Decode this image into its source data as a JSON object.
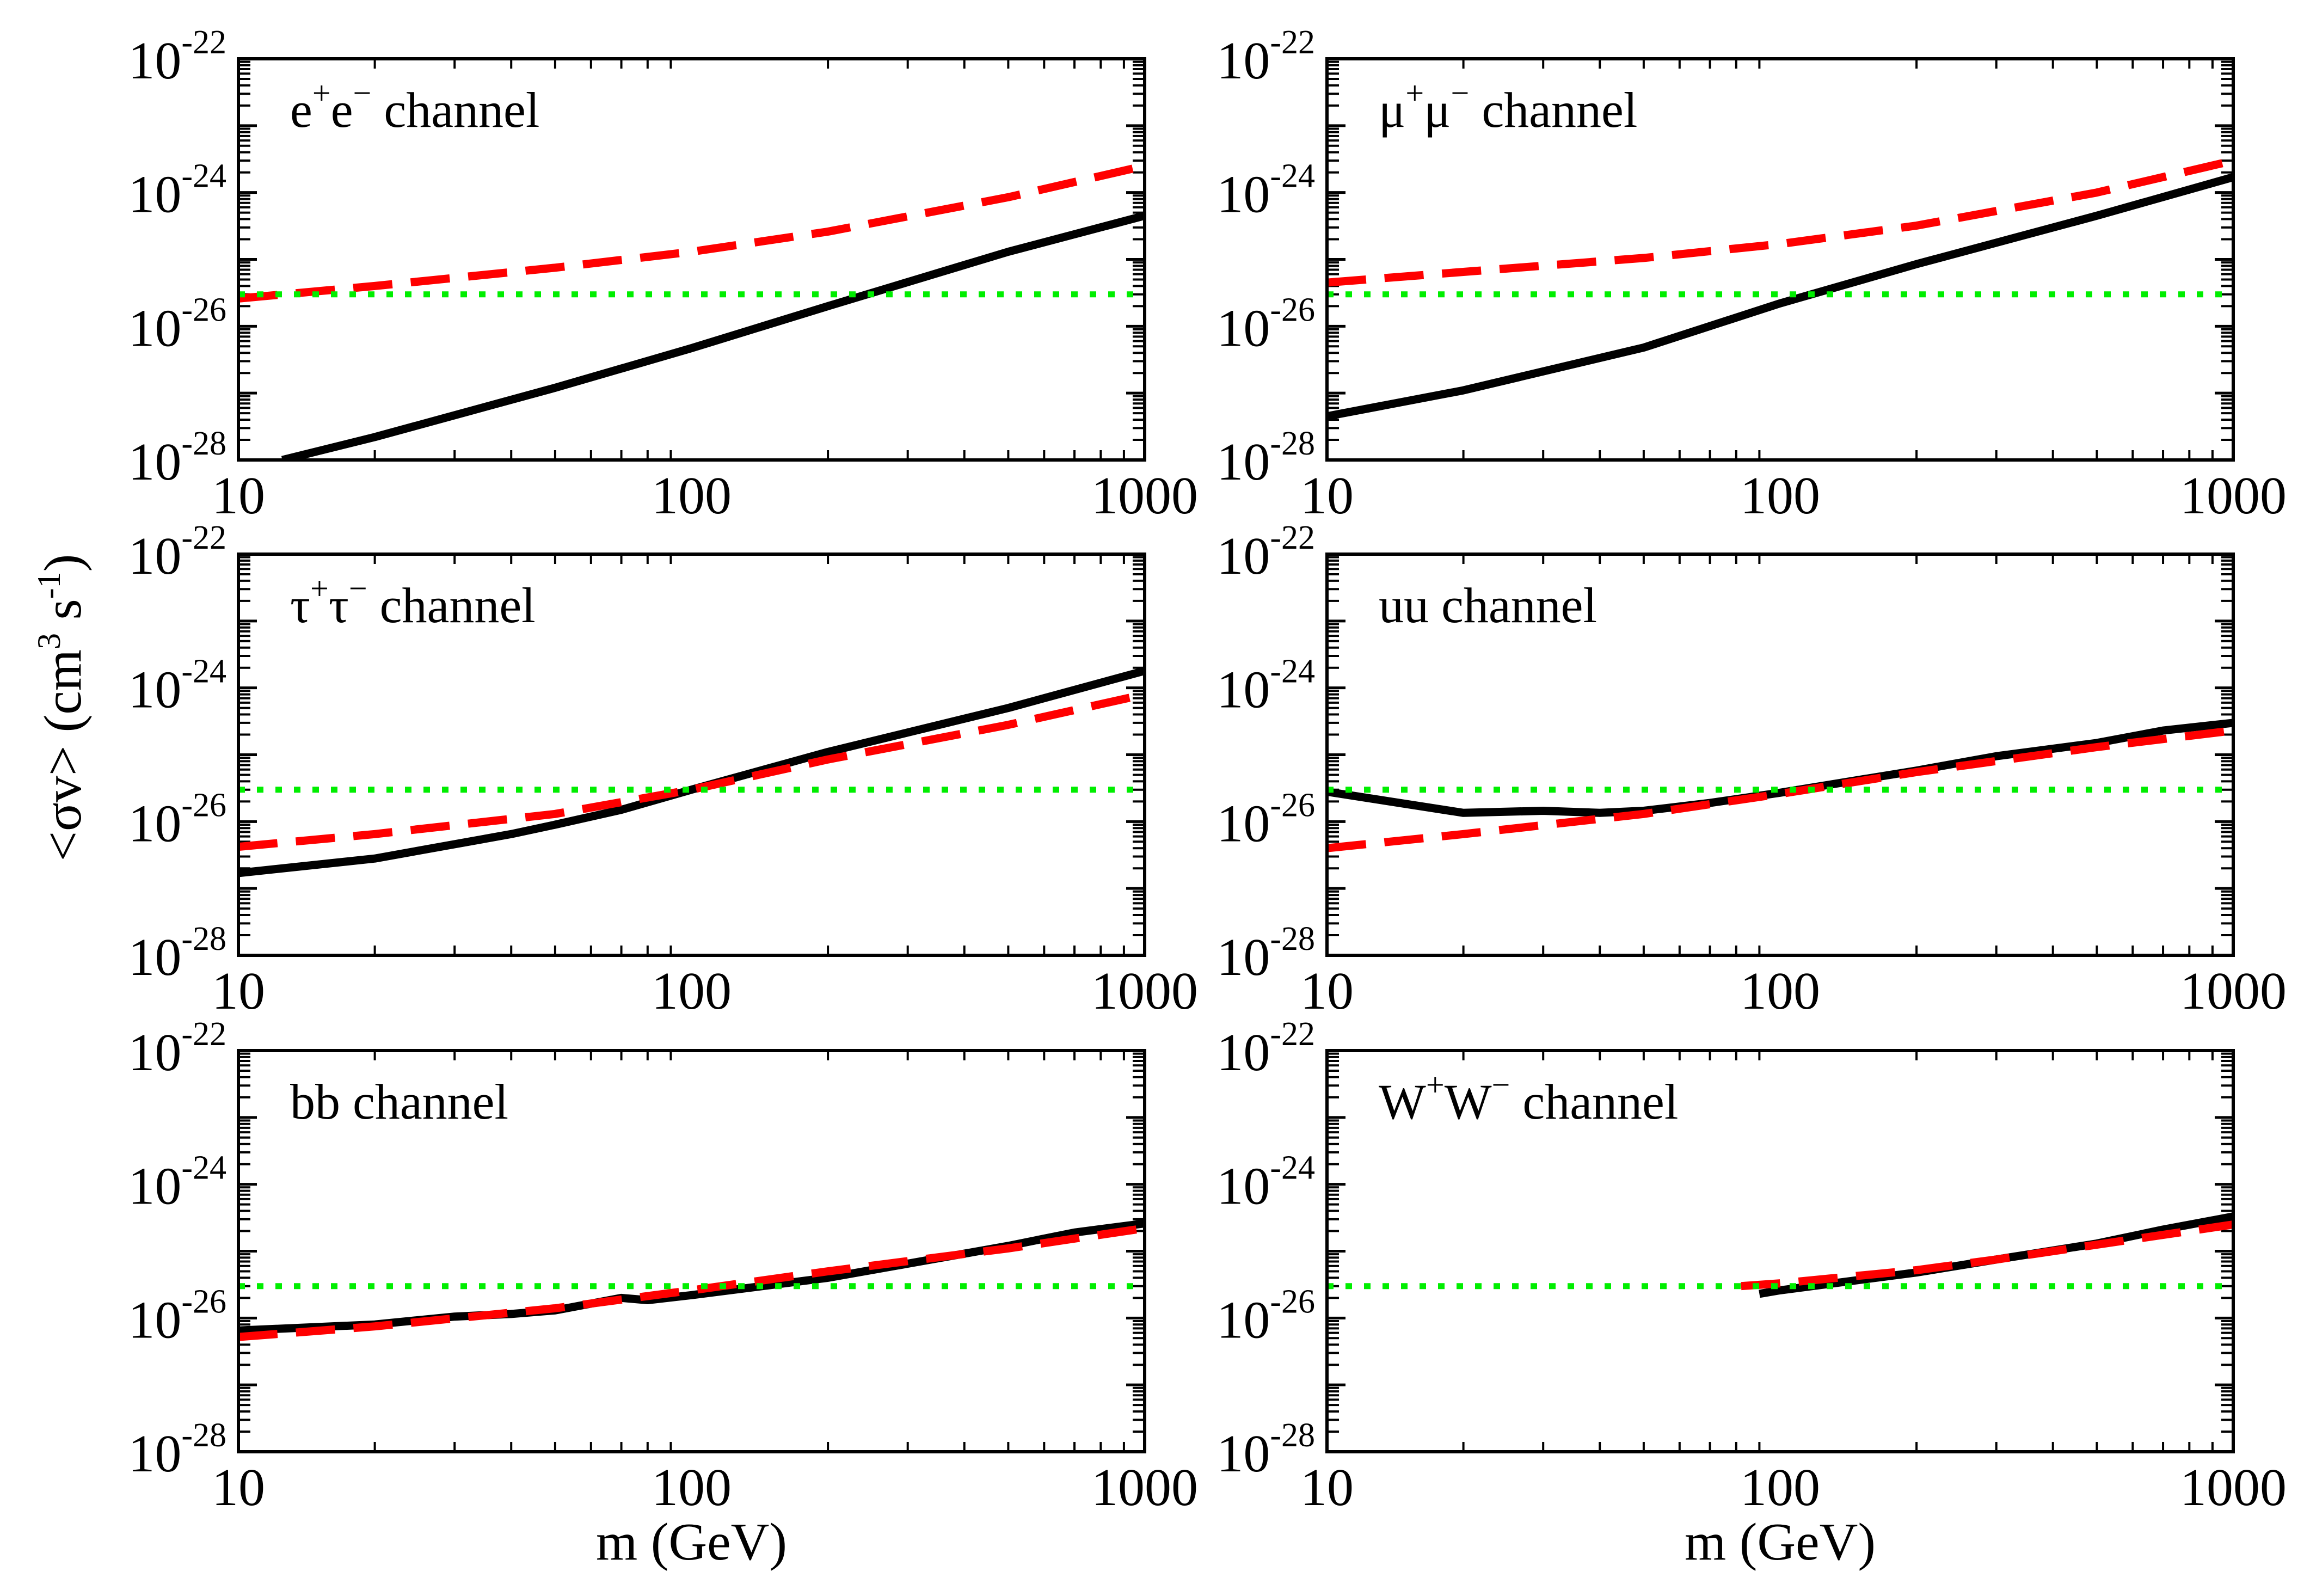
{
  "colors": {
    "solid": "#000000",
    "dashed": "#ff0000",
    "dotted": "#00ee00",
    "frame": "#000000"
  },
  "chart_data": [
    {
      "type": "line",
      "panel_label": "e+e− channel",
      "label_parts": [
        "e",
        "+",
        "e",
        "−",
        " channel"
      ],
      "x_scale": "log",
      "y_scale": "log",
      "xlim": [
        10,
        1000
      ],
      "ylim": [
        1e-28,
        1e-22
      ],
      "x_ticks": [
        "10",
        "100",
        "1000"
      ],
      "y_ticks": [
        {
          "base": "10",
          "exp": "-22"
        },
        {
          "base": "10",
          "exp": "-24"
        },
        {
          "base": "10",
          "exp": "-26"
        },
        {
          "base": "10",
          "exp": "-28"
        }
      ],
      "xlabel": "",
      "series": [
        {
          "name": "solid",
          "style": "solid",
          "x": [
            12.5,
            20,
            50,
            100,
            200,
            500,
            1000
          ],
          "y": [
            1e-28,
            2.2e-28,
            1.2e-27,
            4.7e-27,
            2e-26,
            1.3e-25,
            4.5e-25
          ]
        },
        {
          "name": "dashed",
          "style": "dashed",
          "x": [
            10,
            20,
            50,
            100,
            200,
            500,
            1000
          ],
          "y": [
            2.6e-26,
            4e-26,
            7.5e-26,
            1.3e-25,
            2.6e-25,
            8.5e-25,
            2.5e-24
          ]
        },
        {
          "name": "dotted",
          "style": "dotted",
          "x": [
            10,
            1000
          ],
          "y": [
            3e-26,
            3e-26
          ]
        }
      ]
    },
    {
      "type": "line",
      "panel_label": "μ+μ− channel",
      "label_parts": [
        "μ",
        "+",
        "μ",
        "−",
        " channel"
      ],
      "x_scale": "log",
      "y_scale": "log",
      "xlim": [
        10,
        1000
      ],
      "ylim": [
        1e-28,
        1e-22
      ],
      "x_ticks": [
        "10",
        "100",
        "1000"
      ],
      "y_ticks": [
        {
          "base": "10",
          "exp": "-22"
        },
        {
          "base": "10",
          "exp": "-24"
        },
        {
          "base": "10",
          "exp": "-26"
        },
        {
          "base": "10",
          "exp": "-28"
        }
      ],
      "xlabel": "",
      "series": [
        {
          "name": "solid",
          "style": "solid",
          "x": [
            10,
            20,
            50,
            100,
            200,
            500,
            1000
          ],
          "y": [
            4.5e-28,
            1.1e-27,
            4.8e-27,
            2.2e-26,
            8.5e-26,
            4.5e-25,
            1.7e-24
          ]
        },
        {
          "name": "dashed",
          "style": "dashed",
          "x": [
            10,
            20,
            50,
            100,
            200,
            500,
            1000
          ],
          "y": [
            4.5e-26,
            6.5e-26,
            1.05e-25,
            1.7e-25,
            3.2e-25,
            1e-24,
            3e-24
          ]
        },
        {
          "name": "dotted",
          "style": "dotted",
          "x": [
            10,
            1000
          ],
          "y": [
            3e-26,
            3e-26
          ]
        }
      ]
    },
    {
      "type": "line",
      "panel_label": "τ+τ− channel",
      "label_parts": [
        "τ",
        "+",
        "τ",
        "−",
        " channel"
      ],
      "x_scale": "log",
      "y_scale": "log",
      "xlim": [
        10,
        1000
      ],
      "ylim": [
        1e-28,
        1e-22
      ],
      "x_ticks": [
        "10",
        "100",
        "1000"
      ],
      "y_ticks": [
        {
          "base": "10",
          "exp": "-22"
        },
        {
          "base": "10",
          "exp": "-24"
        },
        {
          "base": "10",
          "exp": "-26"
        },
        {
          "base": "10",
          "exp": "-28"
        }
      ],
      "xlabel": "",
      "series": [
        {
          "name": "solid",
          "style": "solid",
          "x": [
            10,
            20,
            40,
            50,
            70,
            100,
            200,
            500,
            1000
          ],
          "y": [
            1.7e-27,
            2.8e-27,
            6.5e-27,
            9e-27,
            1.5e-26,
            3e-26,
            1.1e-25,
            5e-25,
            1.8e-24
          ]
        },
        {
          "name": "dashed",
          "style": "dashed",
          "x": [
            10,
            20,
            50,
            100,
            200,
            500,
            1000
          ],
          "y": [
            4.2e-27,
            6.5e-27,
            1.3e-26,
            3e-26,
            8.5e-26,
            2.8e-25,
            8e-25
          ]
        },
        {
          "name": "dotted",
          "style": "dotted",
          "x": [
            10,
            1000
          ],
          "y": [
            3e-26,
            3e-26
          ]
        }
      ]
    },
    {
      "type": "line",
      "panel_label": "uu channel",
      "label_parts": [
        "uu channel"
      ],
      "x_scale": "log",
      "y_scale": "log",
      "xlim": [
        10,
        1000
      ],
      "ylim": [
        1e-28,
        1e-22
      ],
      "x_ticks": [
        "10",
        "100",
        "1000"
      ],
      "y_ticks": [
        {
          "base": "10",
          "exp": "-22"
        },
        {
          "base": "10",
          "exp": "-24"
        },
        {
          "base": "10",
          "exp": "-26"
        },
        {
          "base": "10",
          "exp": "-28"
        }
      ],
      "xlabel": "",
      "series": [
        {
          "name": "solid",
          "style": "solid",
          "x": [
            10,
            20,
            30,
            40,
            50,
            70,
            100,
            200,
            300,
            500,
            700,
            1000
          ],
          "y": [
            2.8e-26,
            1.35e-26,
            1.45e-26,
            1.35e-26,
            1.45e-26,
            1.9e-26,
            2.7e-26,
            5.8e-26,
            9.5e-26,
            1.5e-25,
            2.3e-25,
            3e-25
          ]
        },
        {
          "name": "dashed",
          "style": "dashed",
          "x": [
            10,
            20,
            50,
            100,
            200,
            500,
            1000
          ],
          "y": [
            4e-27,
            6.5e-27,
            1.3e-26,
            2.6e-26,
            5.5e-26,
            1.3e-25,
            2.3e-25
          ]
        },
        {
          "name": "dotted",
          "style": "dotted",
          "x": [
            10,
            1000
          ],
          "y": [
            3e-26,
            3e-26
          ]
        }
      ]
    },
    {
      "type": "line",
      "panel_label": "bb channel",
      "label_parts": [
        "bb channel"
      ],
      "x_scale": "log",
      "y_scale": "log",
      "xlim": [
        10,
        1000
      ],
      "ylim": [
        1e-28,
        1e-22
      ],
      "x_ticks": [
        "10",
        "100",
        "1000"
      ],
      "y_ticks": [
        {
          "base": "10",
          "exp": "-22"
        },
        {
          "base": "10",
          "exp": "-24"
        },
        {
          "base": "10",
          "exp": "-26"
        },
        {
          "base": "10",
          "exp": "-28"
        }
      ],
      "xlabel": "m (GeV)",
      "series": [
        {
          "name": "solid",
          "style": "solid",
          "x": [
            10,
            20,
            30,
            40,
            50,
            70,
            80,
            100,
            200,
            300,
            500,
            700,
            1000
          ],
          "y": [
            6.5e-27,
            8e-27,
            1.05e-26,
            1.15e-26,
            1.3e-26,
            2e-26,
            1.85e-26,
            2.2e-26,
            4e-26,
            6.5e-26,
            1.2e-25,
            1.9e-25,
            2.6e-25
          ]
        },
        {
          "name": "dashed",
          "style": "dashed",
          "x": [
            10,
            20,
            50,
            100,
            200,
            500,
            1000
          ],
          "y": [
            5.2e-27,
            7.5e-27,
            1.4e-26,
            2.6e-26,
            5e-26,
            1.1e-25,
            2.2e-25
          ]
        },
        {
          "name": "dotted",
          "style": "dotted",
          "x": [
            10,
            1000
          ],
          "y": [
            3e-26,
            3e-26
          ]
        }
      ]
    },
    {
      "type": "line",
      "panel_label": "W+W− channel",
      "label_parts": [
        "W",
        "+",
        "W",
        "−",
        " channel"
      ],
      "x_scale": "log",
      "y_scale": "log",
      "xlim": [
        10,
        1000
      ],
      "ylim": [
        1e-28,
        1e-22
      ],
      "x_ticks": [
        "10",
        "100",
        "1000"
      ],
      "y_ticks": [
        {
          "base": "10",
          "exp": "-22"
        },
        {
          "base": "10",
          "exp": "-24"
        },
        {
          "base": "10",
          "exp": "-26"
        },
        {
          "base": "10",
          "exp": "-28"
        }
      ],
      "xlabel": "m (GeV)",
      "series": [
        {
          "name": "solid",
          "style": "solid",
          "x": [
            90,
            100,
            200,
            300,
            500,
            700,
            1000
          ],
          "y": [
            2.3e-26,
            2.6e-26,
            4.8e-26,
            7.5e-26,
            1.3e-25,
            2.1e-25,
            3.3e-25
          ]
        },
        {
          "name": "dashed",
          "style": "dashed",
          "x": [
            82,
            100,
            200,
            300,
            500,
            700,
            1000
          ],
          "y": [
            3e-26,
            3.3e-26,
            5.2e-26,
            7.5e-26,
            1.25e-25,
            1.75e-25,
            2.5e-25
          ]
        },
        {
          "name": "dotted",
          "style": "dotted",
          "x": [
            10,
            1000
          ],
          "y": [
            3e-26,
            3e-26
          ]
        }
      ]
    }
  ],
  "ylabel": {
    "main": "<σv> (cm",
    "exp1": "3",
    "mid": " s",
    "exp2": "-1",
    "end": ")"
  }
}
